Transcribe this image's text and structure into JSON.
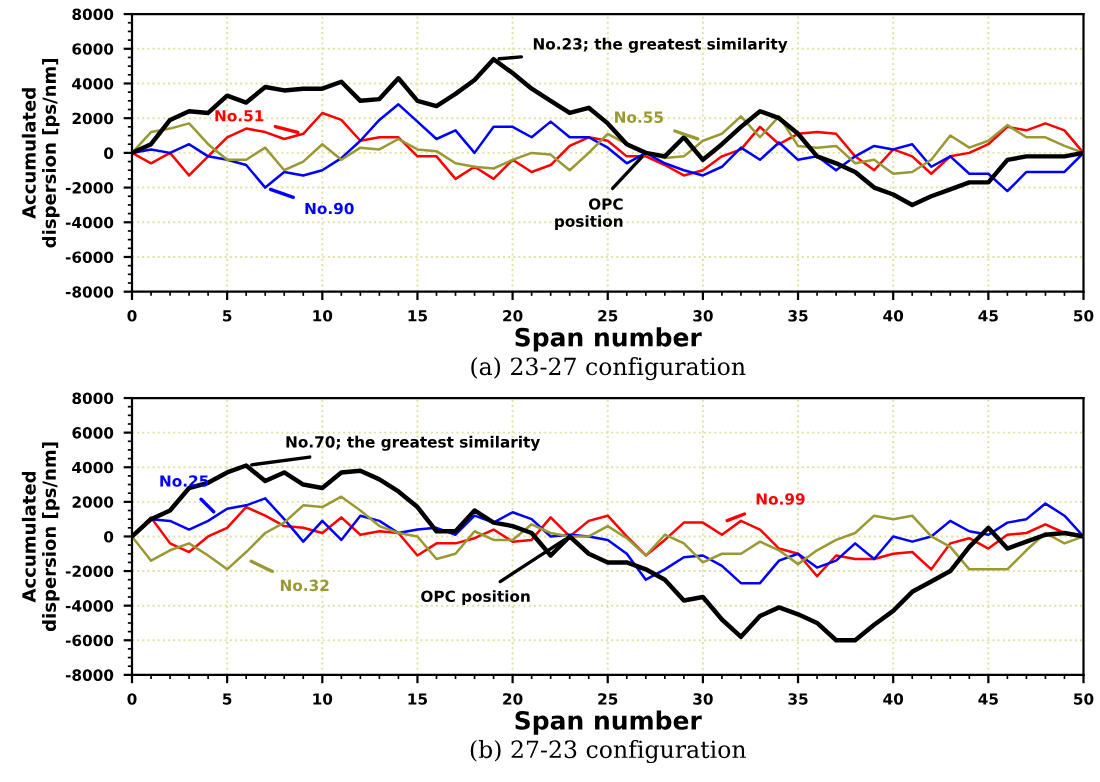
{
  "chart_data": [
    {
      "type": "line",
      "title": "(a) 23-27 configuration",
      "xlabel": "Span number",
      "ylabel": "Accumulated\ndispersion [ps/nm]",
      "x": [
        0,
        1,
        2,
        3,
        4,
        5,
        6,
        7,
        8,
        9,
        10,
        11,
        12,
        13,
        14,
        15,
        16,
        17,
        18,
        19,
        20,
        21,
        22,
        23,
        24,
        25,
        26,
        27,
        28,
        29,
        30,
        31,
        32,
        33,
        34,
        35,
        36,
        37,
        38,
        39,
        40,
        41,
        42,
        43,
        44,
        45,
        46,
        47,
        48,
        49,
        50
      ],
      "series": [
        {
          "color": "#ff0000",
          "values": [
            0,
            -600,
            0,
            -1300,
            -200,
            900,
            1400,
            1200,
            800,
            1100,
            2300,
            1900,
            700,
            900,
            900,
            -200,
            -200,
            -1500,
            -800,
            -1500,
            -400,
            -1100,
            -700,
            400,
            900,
            700,
            -200,
            -200,
            -700,
            -1300,
            -1000,
            -200,
            200,
            1500,
            500,
            1100,
            1200,
            1100,
            -200,
            -1000,
            200,
            -200,
            -1200,
            -200,
            0,
            500,
            1500,
            1300,
            1700,
            1300,
            0
          ]
        },
        {
          "color": "#0000ff",
          "values": [
            0,
            200,
            0,
            500,
            -200,
            -400,
            -700,
            -2000,
            -1100,
            -1300,
            -1000,
            -300,
            700,
            1900,
            2800,
            1800,
            800,
            1300,
            0,
            1500,
            1500,
            900,
            1800,
            900,
            900,
            300,
            -600,
            0,
            -600,
            -1000,
            -1300,
            -800,
            300,
            -400,
            600,
            -400,
            -200,
            -1000,
            -200,
            400,
            200,
            500,
            -800,
            -200,
            -1200,
            -1200,
            -2200,
            -1100,
            -1100,
            -1100,
            0
          ]
        },
        {
          "color": "#999933",
          "values": [
            0,
            1200,
            1400,
            1700,
            500,
            -400,
            -400,
            300,
            -1000,
            -500,
            500,
            -400,
            300,
            200,
            800,
            200,
            100,
            -600,
            -800,
            -900,
            -400,
            0,
            -100,
            -1000,
            0,
            1100,
            500,
            0,
            -300,
            -200,
            700,
            1100,
            2100,
            900,
            2100,
            400,
            300,
            400,
            -600,
            -400,
            -1200,
            -1100,
            -400,
            1000,
            300,
            700,
            1600,
            900,
            900,
            400,
            0
          ]
        },
        {
          "color": "#000000",
          "values": [
            0,
            500,
            1900,
            2400,
            2300,
            3300,
            2900,
            3800,
            3600,
            3700,
            3700,
            4100,
            3000,
            3100,
            4300,
            3000,
            2700,
            3400,
            4200,
            5400,
            4600,
            3700,
            3000,
            2300,
            2600,
            1700,
            500,
            0,
            -200,
            900,
            -400,
            500,
            1500,
            2400,
            2000,
            1100,
            -200,
            -600,
            -1100,
            -2000,
            -2400,
            -3000,
            -2500,
            -2100,
            -1700,
            -1700,
            -400,
            -200,
            -200,
            -200,
            0
          ]
        }
      ],
      "annotations": [
        {
          "text": "No.23; the greatest similarity",
          "x": 19,
          "y": 5400
        },
        {
          "text": "No.51",
          "x": 9,
          "y": 1100
        },
        {
          "text": "No.55",
          "x": 30,
          "y": 700
        },
        {
          "text": "No.90",
          "x": 7,
          "y": -2000
        },
        {
          "text": "OPC\nposition",
          "x": 27,
          "y": 0
        }
      ],
      "xlim": [
        0,
        50
      ],
      "xticks": [
        0,
        5,
        10,
        15,
        20,
        25,
        30,
        35,
        40,
        45,
        50
      ],
      "ylim": [
        -8000,
        8000
      ],
      "yticks": [
        -8000,
        -6000,
        -4000,
        -2000,
        0,
        2000,
        4000,
        6000,
        8000
      ],
      "grid": true,
      "marker": "none",
      "line_style": "solid"
    },
    {
      "type": "line",
      "title": "(b) 27-23 configuration",
      "xlabel": "Span number",
      "ylabel": "Accumulated\ndispersion [ps/nm]",
      "x": [
        0,
        1,
        2,
        3,
        4,
        5,
        6,
        7,
        8,
        9,
        10,
        11,
        12,
        13,
        14,
        15,
        16,
        17,
        18,
        19,
        20,
        21,
        22,
        23,
        24,
        25,
        26,
        27,
        28,
        29,
        30,
        31,
        32,
        33,
        34,
        35,
        36,
        37,
        38,
        39,
        40,
        41,
        42,
        43,
        44,
        45,
        46,
        47,
        48,
        49,
        50
      ],
      "series": [
        {
          "color": "#ff0000",
          "values": [
            0,
            1100,
            -400,
            -900,
            0,
            500,
            1700,
            1200,
            600,
            500,
            200,
            1100,
            100,
            300,
            200,
            -1100,
            -400,
            -400,
            -100,
            400,
            -300,
            -200,
            1100,
            0,
            900,
            1200,
            0,
            -1100,
            -200,
            800,
            800,
            100,
            900,
            400,
            -700,
            -1000,
            -2300,
            -1100,
            -1300,
            -1300,
            -1000,
            -900,
            -1900,
            -400,
            -100,
            -700,
            100,
            200,
            700,
            200,
            0
          ]
        },
        {
          "color": "#0000ff",
          "values": [
            0,
            1000,
            900,
            400,
            900,
            1600,
            1800,
            2200,
            1000,
            -300,
            900,
            -200,
            1200,
            900,
            200,
            400,
            500,
            100,
            1200,
            800,
            1400,
            1000,
            0,
            100,
            0,
            -200,
            -1000,
            -2500,
            -1900,
            -1200,
            -1100,
            -1700,
            -2700,
            -2700,
            -1400,
            -1000,
            -1800,
            -1400,
            -400,
            -1300,
            0,
            -300,
            0,
            900,
            300,
            100,
            800,
            1000,
            1900,
            1200,
            0
          ]
        },
        {
          "color": "#999933",
          "values": [
            0,
            -1400,
            -800,
            -400,
            -1100,
            -1900,
            -900,
            200,
            800,
            1800,
            1700,
            2300,
            1500,
            600,
            200,
            0,
            -1300,
            -1000,
            300,
            -200,
            -200,
            700,
            200,
            0,
            0,
            600,
            -100,
            -1100,
            100,
            -400,
            -1500,
            -1000,
            -1000,
            -300,
            -800,
            -1600,
            -800,
            -200,
            200,
            1200,
            1000,
            1200,
            0,
            -600,
            -1900,
            -1900,
            -1900,
            -800,
            200,
            -400,
            0
          ]
        },
        {
          "color": "#000000",
          "values": [
            0,
            1000,
            1500,
            2800,
            3100,
            3700,
            4100,
            3200,
            3700,
            3000,
            2800,
            3700,
            3800,
            3300,
            2600,
            1700,
            300,
            300,
            1500,
            800,
            600,
            200,
            -1100,
            0,
            -1000,
            -1500,
            -1500,
            -1900,
            -2500,
            -3700,
            -3500,
            -4800,
            -5800,
            -4600,
            -4100,
            -4500,
            -5000,
            -6000,
            -6000,
            -5100,
            -4300,
            -3200,
            -2600,
            -2000,
            -600,
            500,
            -700,
            -300,
            100,
            200,
            0
          ]
        }
      ],
      "annotations": [
        {
          "text": "No.70; the greatest similarity",
          "x": 6,
          "y": 4100
        },
        {
          "text": "No.25",
          "x": 4.5,
          "y": 1200
        },
        {
          "text": "No.99",
          "x": 31,
          "y": 800
        },
        {
          "text": "No.32",
          "x": 6,
          "y": -1300
        },
        {
          "text": "OPC position",
          "x": 23,
          "y": 0
        }
      ],
      "xlim": [
        0,
        50
      ],
      "xticks": [
        0,
        5,
        10,
        15,
        20,
        25,
        30,
        35,
        40,
        45,
        50
      ],
      "ylim": [
        -8000,
        8000
      ],
      "yticks": [
        -8000,
        -6000,
        -4000,
        -2000,
        0,
        2000,
        4000,
        6000,
        8000
      ],
      "grid": true,
      "marker": "none",
      "line_style": "solid"
    }
  ]
}
